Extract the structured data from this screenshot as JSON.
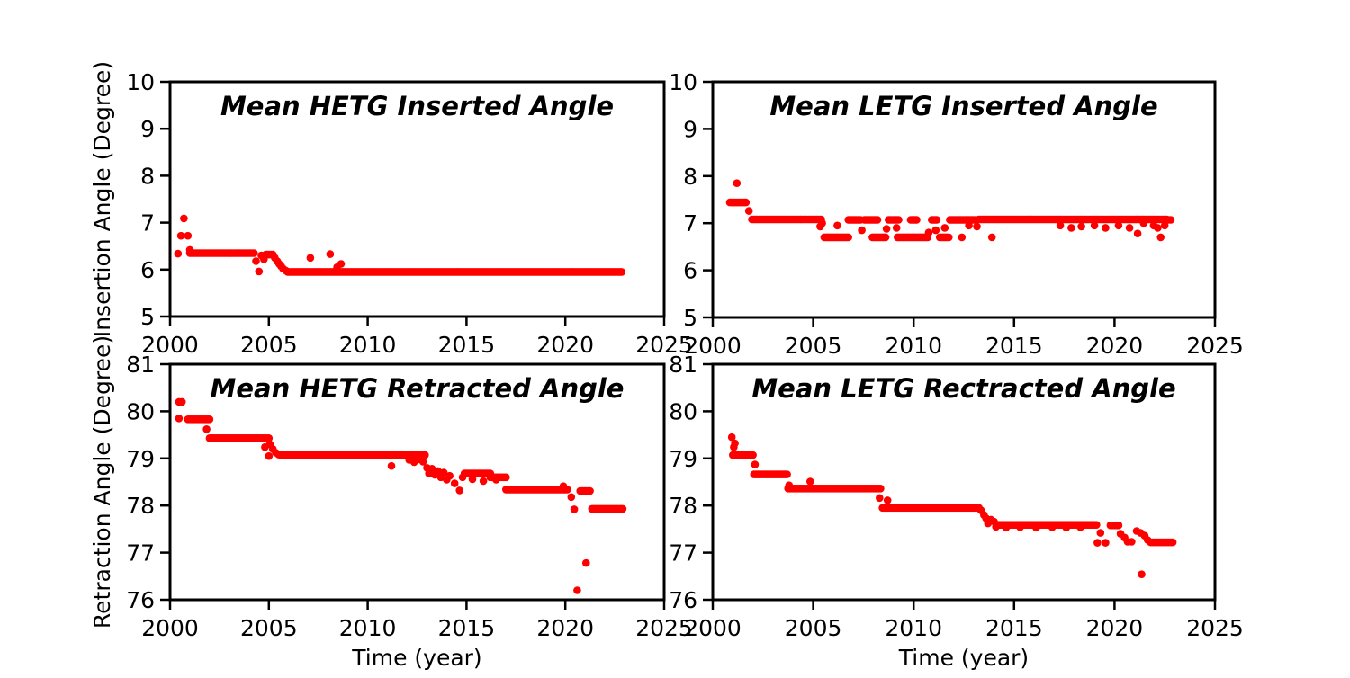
{
  "figure": {
    "background_color": "#ffffff",
    "axis_color": "#000000",
    "marker_color": "#ff0000",
    "marker_shape": "circle",
    "grid": false,
    "legend": null
  },
  "chart_data": [
    {
      "type": "scatter",
      "position": "top-left",
      "title": "Mean HETG Inserted Angle",
      "xlabel": null,
      "ylabel": "Insertion Angle (Degree)",
      "xlim": [
        2000,
        2025
      ],
      "ylim": [
        5,
        10
      ],
      "xticks": [
        2000,
        2005,
        2010,
        2015,
        2020,
        2025
      ],
      "yticks": [
        5,
        6,
        7,
        8,
        9,
        10
      ],
      "series": {
        "name": "mean HETG inserted angle",
        "color": "#ff0000",
        "band_step": 0.07,
        "bands": [
          [
            2001.0,
            2004.25,
            6.35
          ],
          [
            2004.85,
            2005.2,
            6.32
          ],
          [
            2005.95,
            2022.85,
            5.95
          ]
        ],
        "points": [
          [
            2000.4,
            6.34
          ],
          [
            2000.55,
            6.72
          ],
          [
            2000.7,
            7.09
          ],
          [
            2000.9,
            6.72
          ],
          [
            2001.0,
            6.42
          ],
          [
            2004.35,
            6.18
          ],
          [
            2004.5,
            5.96
          ],
          [
            2004.62,
            6.3
          ],
          [
            2004.75,
            6.22
          ],
          [
            2005.3,
            6.25
          ],
          [
            2005.42,
            6.18
          ],
          [
            2005.52,
            6.12
          ],
          [
            2005.62,
            6.07
          ],
          [
            2005.72,
            6.02
          ],
          [
            2005.85,
            5.98
          ],
          [
            2007.1,
            6.25
          ],
          [
            2008.1,
            6.33
          ],
          [
            2008.45,
            6.05
          ],
          [
            2008.65,
            6.12
          ]
        ]
      }
    },
    {
      "type": "scatter",
      "position": "top-right",
      "title": "Mean LETG Inserted Angle",
      "xlabel": null,
      "ylabel": null,
      "xlim": [
        2000,
        2025
      ],
      "ylim": [
        5,
        10
      ],
      "xticks": [
        2000,
        2005,
        2010,
        2015,
        2020,
        2025
      ],
      "yticks": [
        5,
        6,
        7,
        8,
        9,
        10
      ],
      "series": {
        "name": "mean LETG inserted angle",
        "color": "#ff0000",
        "band_step": 0.07,
        "bands": [
          [
            2000.85,
            2001.65,
            7.44
          ],
          [
            2001.95,
            2005.4,
            7.08
          ],
          [
            2005.55,
            2006.75,
            6.7
          ],
          [
            2006.75,
            2007.35,
            7.07
          ],
          [
            2007.55,
            2008.2,
            7.07
          ],
          [
            2007.95,
            2008.6,
            6.7
          ],
          [
            2008.75,
            2009.25,
            7.07
          ],
          [
            2009.2,
            2010.7,
            6.7
          ],
          [
            2009.85,
            2010.15,
            7.07
          ],
          [
            2010.9,
            2011.15,
            7.07
          ],
          [
            2011.3,
            2011.75,
            6.7
          ],
          [
            2011.8,
            2013.1,
            7.07
          ],
          [
            2013.25,
            2022.6,
            7.08
          ]
        ],
        "points": [
          [
            2001.2,
            7.85
          ],
          [
            2001.8,
            7.26
          ],
          [
            2005.45,
            7.0
          ],
          [
            2005.35,
            6.93
          ],
          [
            2006.2,
            6.95
          ],
          [
            2007.42,
            6.85
          ],
          [
            2008.65,
            6.88
          ],
          [
            2009.15,
            6.9
          ],
          [
            2010.75,
            6.8
          ],
          [
            2011.1,
            6.85
          ],
          [
            2011.55,
            6.9
          ],
          [
            2012.4,
            6.7
          ],
          [
            2012.75,
            6.95
          ],
          [
            2013.15,
            6.93
          ],
          [
            2013.9,
            6.7
          ],
          [
            2017.3,
            6.95
          ],
          [
            2017.85,
            6.9
          ],
          [
            2018.35,
            6.93
          ],
          [
            2019.0,
            6.95
          ],
          [
            2019.55,
            6.9
          ],
          [
            2020.2,
            6.95
          ],
          [
            2020.75,
            6.9
          ],
          [
            2021.15,
            6.78
          ],
          [
            2021.45,
            7.0
          ],
          [
            2021.95,
            6.95
          ],
          [
            2022.15,
            6.9
          ],
          [
            2022.3,
            6.7
          ],
          [
            2022.5,
            6.95
          ],
          [
            2022.7,
            7.07
          ],
          [
            2022.8,
            7.07
          ]
        ]
      }
    },
    {
      "type": "scatter",
      "position": "bottom-left",
      "title": "Mean HETG Retracted Angle",
      "xlabel": "Time (year)",
      "ylabel": "Retraction Angle (Degree)",
      "xlim": [
        2000,
        2025
      ],
      "ylim": [
        76,
        81
      ],
      "xticks": [
        2000,
        2005,
        2010,
        2015,
        2020,
        2025
      ],
      "yticks": [
        76,
        77,
        78,
        79,
        80,
        81
      ],
      "series": {
        "name": "mean HETG retracted angle",
        "color": "#ff0000",
        "band_step": 0.07,
        "bands": [
          [
            2000.9,
            2002.0,
            79.83
          ],
          [
            2002.0,
            2005.0,
            79.43
          ],
          [
            2005.6,
            2012.9,
            79.07
          ],
          [
            2014.9,
            2016.2,
            78.68
          ],
          [
            2016.2,
            2017.0,
            78.6
          ],
          [
            2017.0,
            2020.1,
            78.34
          ],
          [
            2020.75,
            2021.25,
            78.31
          ],
          [
            2021.35,
            2022.9,
            77.93
          ]
        ],
        "points": [
          [
            2000.45,
            80.2
          ],
          [
            2000.6,
            80.2
          ],
          [
            2000.45,
            79.85
          ],
          [
            2001.85,
            79.62
          ],
          [
            2004.8,
            79.24
          ],
          [
            2005.0,
            79.05
          ],
          [
            2005.05,
            79.3
          ],
          [
            2005.2,
            79.2
          ],
          [
            2005.35,
            79.12
          ],
          [
            2005.5,
            79.08
          ],
          [
            2011.2,
            78.84
          ],
          [
            2012.1,
            78.97
          ],
          [
            2012.35,
            78.92
          ],
          [
            2012.6,
            78.98
          ],
          [
            2012.8,
            78.93
          ],
          [
            2013.0,
            78.8
          ],
          [
            2013.1,
            78.68
          ],
          [
            2013.25,
            78.78
          ],
          [
            2013.4,
            78.65
          ],
          [
            2013.55,
            78.73
          ],
          [
            2013.7,
            78.6
          ],
          [
            2013.85,
            78.7
          ],
          [
            2014.0,
            78.55
          ],
          [
            2014.15,
            78.63
          ],
          [
            2014.4,
            78.47
          ],
          [
            2014.65,
            78.32
          ],
          [
            2014.8,
            78.6
          ],
          [
            2015.3,
            78.56
          ],
          [
            2015.85,
            78.52
          ],
          [
            2016.5,
            78.55
          ],
          [
            2019.9,
            78.41
          ],
          [
            2020.3,
            78.18
          ],
          [
            2020.45,
            77.92
          ],
          [
            2020.6,
            76.2
          ],
          [
            2021.05,
            76.78
          ]
        ]
      }
    },
    {
      "type": "scatter",
      "position": "bottom-right",
      "title": "Mean LETG Rectracted Angle",
      "xlabel": "Time (year)",
      "ylabel": null,
      "xlim": [
        2000,
        2025
      ],
      "ylim": [
        76,
        81
      ],
      "xticks": [
        2000,
        2005,
        2010,
        2015,
        2020,
        2025
      ],
      "yticks": [
        76,
        77,
        78,
        79,
        80,
        81
      ],
      "series": {
        "name": "mean LETG retracted angle",
        "color": "#ff0000",
        "band_step": 0.07,
        "bands": [
          [
            2001.0,
            2002.0,
            79.07
          ],
          [
            2002.05,
            2003.7,
            78.66
          ],
          [
            2003.75,
            2008.35,
            78.36
          ],
          [
            2008.45,
            2013.25,
            77.95
          ],
          [
            2014.2,
            2019.1,
            77.59
          ],
          [
            2019.8,
            2020.2,
            77.58
          ],
          [
            2021.8,
            2022.9,
            77.22
          ]
        ],
        "points": [
          [
            2000.95,
            79.45
          ],
          [
            2001.05,
            79.24
          ],
          [
            2001.1,
            79.32
          ],
          [
            2002.1,
            78.87
          ],
          [
            2003.8,
            78.43
          ],
          [
            2004.85,
            78.51
          ],
          [
            2008.3,
            78.16
          ],
          [
            2008.7,
            78.11
          ],
          [
            2013.35,
            77.9
          ],
          [
            2013.5,
            77.8
          ],
          [
            2013.6,
            77.73
          ],
          [
            2013.7,
            77.62
          ],
          [
            2013.85,
            77.7
          ],
          [
            2014.0,
            77.66
          ],
          [
            2014.1,
            77.55
          ],
          [
            2014.6,
            77.53
          ],
          [
            2015.3,
            77.54
          ],
          [
            2016.1,
            77.53
          ],
          [
            2016.9,
            77.54
          ],
          [
            2017.6,
            77.53
          ],
          [
            2018.3,
            77.54
          ],
          [
            2019.15,
            77.21
          ],
          [
            2019.3,
            77.42
          ],
          [
            2019.55,
            77.21
          ],
          [
            2020.3,
            77.4
          ],
          [
            2020.5,
            77.32
          ],
          [
            2020.65,
            77.23
          ],
          [
            2020.85,
            77.23
          ],
          [
            2021.1,
            77.46
          ],
          [
            2021.3,
            77.42
          ],
          [
            2021.5,
            77.36
          ],
          [
            2021.65,
            77.27
          ],
          [
            2021.35,
            76.54
          ]
        ]
      }
    }
  ]
}
